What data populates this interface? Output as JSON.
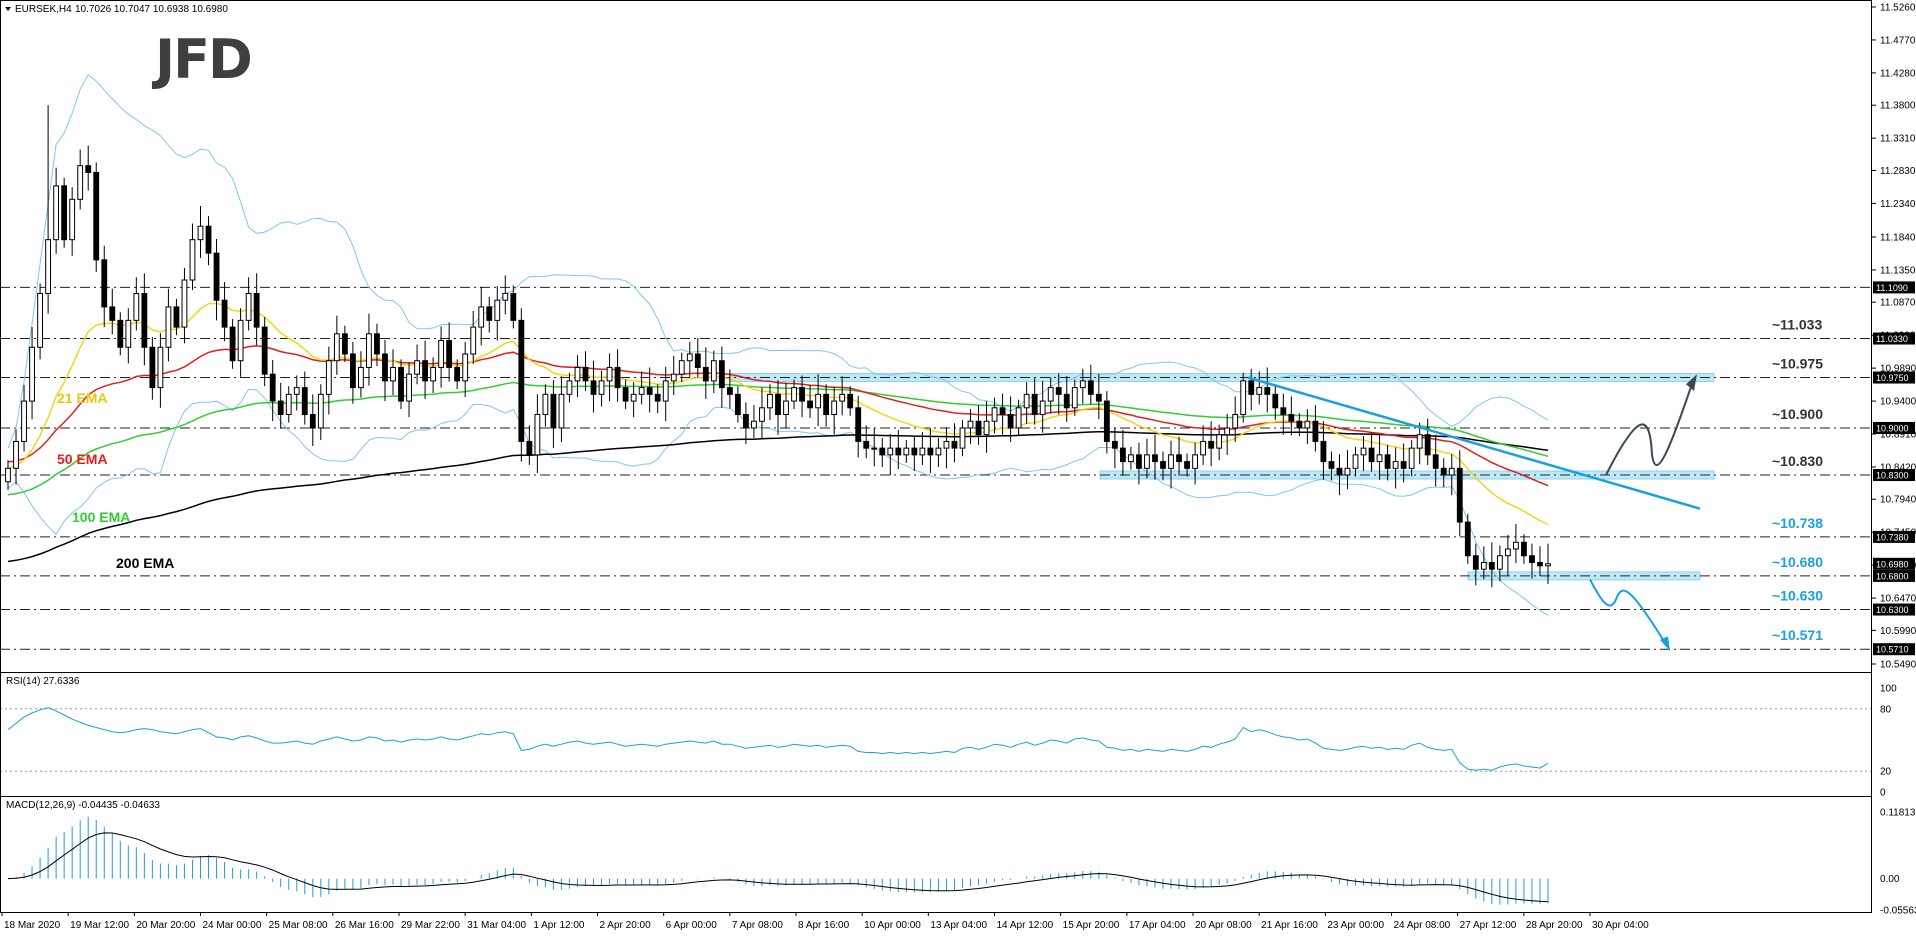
{
  "window": {
    "symbol_header": "EURSEK,H4",
    "ohlc_header": "10.7026 10.7047 10.6938 10.6980",
    "logo": "JFD"
  },
  "colors": {
    "background": "#ffffff",
    "bull_candle": "#ffffff",
    "bear_candle": "#000000",
    "ema21": "#f5d51a",
    "ema50": "#e02020",
    "ema100": "#33cc33",
    "ema200": "#000000",
    "bollinger": "#7ec8f0",
    "trend": "#1aa0e0",
    "zone": "#bde8f5",
    "indicator_line": "#1aa0e0",
    "accent_label": "#1aa0e0"
  },
  "chart_data": [
    {
      "type": "candlestick",
      "title": "EURSEK,H4",
      "ylim": [
        10.549,
        11.526
      ],
      "y_ticks": [
        "11.5260",
        "11.4770",
        "11.4280",
        "11.3800",
        "11.3310",
        "11.2830",
        "11.2340",
        "11.1840",
        "11.1350",
        "11.0870",
        "11.0380",
        "10.9890",
        "10.9400",
        "10.8910",
        "10.8420",
        "10.7940",
        "10.7450",
        "10.6960",
        "10.6470",
        "10.5990",
        "10.5490"
      ],
      "x_tick_labels": [
        "18 Mar 2020",
        "19 Mar 12:00",
        "20 Mar 20:00",
        "24 Mar 00:00",
        "25 Mar 08:00",
        "26 Mar 16:00",
        "29 Mar 22:00",
        "31 Mar 04:00",
        "1 Apr 12:00",
        "2 Apr 20:00",
        "6 Apr 00:00",
        "7 Apr 08:00",
        "8 Apr 16:00",
        "10 Apr 00:00",
        "13 Apr 04:00",
        "14 Apr 12:00",
        "15 Apr 20:00",
        "17 Apr 04:00",
        "20 Apr 08:00",
        "21 Apr 16:00",
        "23 Apr 00:00",
        "24 Apr 08:00",
        "27 Apr 12:00",
        "28 Apr 20:00",
        "30 Apr 04:00"
      ],
      "level_labels": [
        {
          "price": 11.109,
          "marker": "11.1090",
          "text": ""
        },
        {
          "price": 11.033,
          "marker": "11.0330",
          "text": "~11.033"
        },
        {
          "price": 10.975,
          "marker": "10.9750",
          "text": "~10.975"
        },
        {
          "price": 10.9,
          "marker": "10.9000",
          "text": "~10.900"
        },
        {
          "price": 10.83,
          "marker": "10.8300",
          "text": "~10.830"
        },
        {
          "price": 10.738,
          "marker": "10.7380",
          "text": "~10.738"
        },
        {
          "price": 10.68,
          "marker": "10.6800",
          "text": "~10.680"
        },
        {
          "price": 10.63,
          "marker": "10.6300",
          "text": "~10.630"
        },
        {
          "price": 10.571,
          "marker": "10.5710",
          "text": "~10.571"
        }
      ],
      "current_price": "10.6980",
      "ema_labels": [
        "21 EMA",
        "50 EMA",
        "100 EMA",
        "200 EMA"
      ],
      "closes": [
        10.84,
        10.88,
        10.94,
        11.02,
        11.1,
        11.18,
        11.26,
        11.18,
        11.24,
        11.29,
        11.28,
        11.15,
        11.08,
        11.06,
        11.02,
        11.06,
        11.1,
        11.02,
        10.96,
        11.02,
        11.08,
        11.05,
        11.12,
        11.18,
        11.2,
        11.16,
        11.09,
        11.05,
        11.0,
        11.06,
        11.1,
        11.05,
        10.98,
        10.94,
        10.92,
        10.95,
        10.96,
        10.92,
        10.9,
        10.95,
        11.0,
        11.04,
        11.01,
        10.96,
        10.99,
        11.04,
        11.01,
        10.97,
        10.99,
        10.94,
        10.98,
        11.0,
        10.97,
        10.99,
        11.03,
        10.99,
        10.97,
        11.01,
        11.05,
        11.08,
        11.06,
        11.09,
        11.1,
        11.06,
        10.88,
        10.86,
        10.92,
        10.95,
        10.9,
        10.95,
        10.97,
        10.99,
        10.97,
        10.95,
        10.97,
        10.99,
        10.96,
        10.94,
        10.95,
        10.96,
        10.95,
        10.94,
        10.97,
        10.98,
        11.0,
        11.01,
        10.99,
        10.97,
        11.0,
        10.96,
        10.95,
        10.92,
        10.9,
        10.91,
        10.93,
        10.95,
        10.92,
        10.94,
        10.96,
        10.94,
        10.93,
        10.95,
        10.92,
        10.94,
        10.95,
        10.93,
        10.88,
        10.87,
        10.87,
        10.86,
        10.87,
        10.86,
        10.87,
        10.86,
        10.87,
        10.86,
        10.87,
        10.88,
        10.87,
        10.9,
        10.91,
        10.89,
        10.91,
        10.93,
        10.92,
        10.9,
        10.93,
        10.95,
        10.92,
        10.94,
        10.96,
        10.95,
        10.93,
        10.96,
        10.97,
        10.95,
        10.94,
        10.88,
        10.87,
        10.85,
        10.86,
        10.84,
        10.86,
        10.85,
        10.84,
        10.86,
        10.85,
        10.84,
        10.86,
        10.88,
        10.87,
        10.89,
        10.9,
        10.92,
        10.97,
        10.95,
        10.96,
        10.95,
        10.93,
        10.92,
        10.91,
        10.9,
        10.91,
        10.88,
        10.85,
        10.84,
        10.83,
        10.84,
        10.86,
        10.87,
        10.85,
        10.86,
        10.84,
        10.85,
        10.84,
        10.87,
        10.89,
        10.86,
        10.84,
        10.83,
        10.84,
        10.76,
        10.71,
        10.69,
        10.7,
        10.69,
        10.71,
        10.72,
        10.73,
        10.71,
        10.7,
        10.695,
        10.698
      ]
    },
    {
      "type": "line",
      "title": "RSI(14) 27.6336",
      "ylim": [
        0,
        100
      ],
      "y_ticks": [
        "100",
        "80",
        "20",
        "0"
      ],
      "levels": [
        80,
        20
      ],
      "values": [
        60,
        66,
        72,
        76,
        79,
        81,
        78,
        74,
        70,
        67,
        64,
        62,
        60,
        58,
        57,
        58,
        60,
        61,
        60,
        58,
        57,
        56,
        58,
        60,
        61,
        57,
        53,
        52,
        50,
        53,
        54,
        52,
        49,
        47,
        47,
        48,
        49,
        47,
        46,
        49,
        51,
        53,
        51,
        49,
        50,
        53,
        52,
        49,
        50,
        48,
        50,
        51,
        50,
        51,
        53,
        51,
        50,
        52,
        54,
        56,
        55,
        57,
        58,
        56,
        40,
        41,
        44,
        46,
        44,
        46,
        48,
        49,
        47,
        46,
        47,
        48,
        46,
        44,
        45,
        46,
        45,
        44,
        46,
        47,
        48,
        49,
        48,
        47,
        49,
        46,
        46,
        44,
        42,
        43,
        44,
        45,
        43,
        44,
        46,
        45,
        44,
        45,
        43,
        44,
        45,
        44,
        39,
        38,
        38,
        37,
        38,
        37,
        38,
        37,
        38,
        37,
        38,
        39,
        38,
        42,
        43,
        41,
        43,
        46,
        45,
        43,
        46,
        48,
        45,
        47,
        50,
        49,
        47,
        51,
        52,
        50,
        49,
        43,
        42,
        40,
        41,
        39,
        41,
        40,
        39,
        41,
        40,
        39,
        41,
        44,
        43,
        46,
        48,
        51,
        62,
        58,
        60,
        58,
        55,
        53,
        52,
        50,
        51,
        47,
        42,
        41,
        40,
        41,
        43,
        44,
        42,
        43,
        41,
        42,
        41,
        45,
        47,
        43,
        41,
        40,
        41,
        28,
        22,
        21,
        22,
        21,
        24,
        26,
        27,
        25,
        24,
        23,
        27.63
      ]
    },
    {
      "type": "bar",
      "title": "MACD(12,26,9) -0.04435 -0.04633",
      "ylim": [
        -0.05563,
        0.11813
      ],
      "y_ticks": [
        "0.11813",
        "0.00",
        "-0.05563"
      ],
      "signal_line": true
    }
  ]
}
